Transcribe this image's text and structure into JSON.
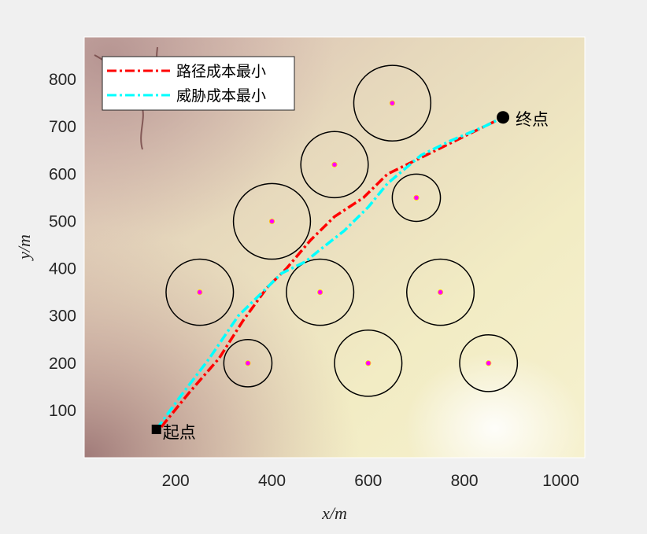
{
  "chart_data": {
    "type": "line",
    "xlabel": "x/m",
    "ylabel": "y/m",
    "xlim": [
      10,
      1050
    ],
    "ylim": [
      0,
      890
    ],
    "xticks": [
      200,
      400,
      600,
      800,
      1000
    ],
    "yticks": [
      100,
      200,
      300,
      400,
      500,
      600,
      700,
      800
    ],
    "grid": false,
    "legend_placement": "top-left",
    "background": "terrain elevation map",
    "series": [
      {
        "name": "路径成本最小",
        "color": "#ff0000",
        "style": "dash-dot",
        "x": [
          170,
          230,
          290,
          340,
          390,
          430,
          480,
          530,
          590,
          640,
          700,
          760,
          820,
          880
        ],
        "y": [
          65,
          140,
          210,
          290,
          360,
          400,
          460,
          510,
          550,
          600,
          630,
          660,
          690,
          720
        ]
      },
      {
        "name": "威胁成本最小",
        "color": "#00ffff",
        "style": "dash-dot",
        "x": [
          160,
          210,
          270,
          330,
          380,
          420,
          470,
          500,
          550,
          600,
          640,
          710,
          770,
          840,
          880
        ],
        "y": [
          60,
          130,
          210,
          300,
          350,
          390,
          415,
          440,
          480,
          530,
          580,
          640,
          670,
          700,
          720
        ]
      }
    ],
    "threats": [
      {
        "x": 650,
        "y": 750,
        "r": 80
      },
      {
        "x": 530,
        "y": 620,
        "r": 70
      },
      {
        "x": 700,
        "y": 550,
        "r": 50
      },
      {
        "x": 400,
        "y": 500,
        "r": 80
      },
      {
        "x": 250,
        "y": 350,
        "r": 70
      },
      {
        "x": 500,
        "y": 350,
        "r": 70
      },
      {
        "x": 750,
        "y": 350,
        "r": 70
      },
      {
        "x": 350,
        "y": 200,
        "r": 50
      },
      {
        "x": 600,
        "y": 200,
        "r": 70
      },
      {
        "x": 850,
        "y": 200,
        "r": 60
      }
    ],
    "annotations": {
      "start": {
        "label": "起点",
        "x": 160,
        "y": 60
      },
      "end": {
        "label": "终点",
        "x": 880,
        "y": 720
      }
    }
  }
}
